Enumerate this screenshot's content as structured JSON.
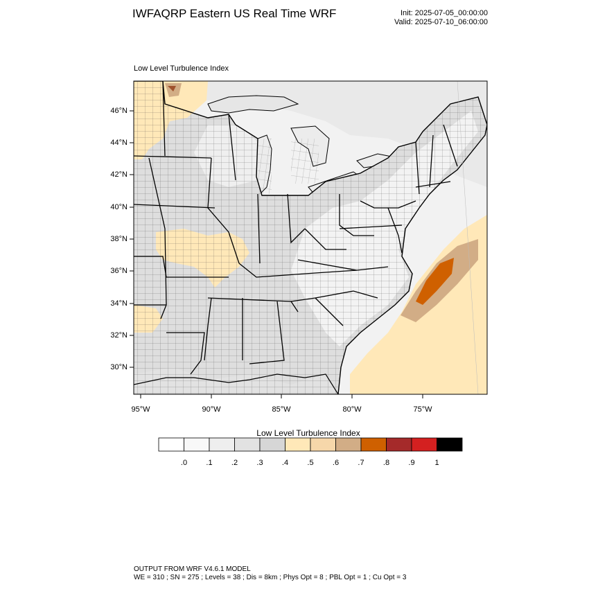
{
  "header": {
    "title": "IWFAQRP Eastern US Real Time WRF",
    "init": "Init: 2025-07-05_00:00:00",
    "valid": "Valid: 2025-07-10_06:00:00"
  },
  "map": {
    "label": "Low Level Turbulence Index",
    "lat_labels": [
      "46°N",
      "44°N",
      "42°N",
      "40°N",
      "38°N",
      "36°N",
      "34°N",
      "32°N",
      "30°N"
    ],
    "lon_labels": [
      "95°W",
      "90°W",
      "85°W",
      "80°W",
      "75°W"
    ]
  },
  "colorbar": {
    "title": "Low Level Turbulence Index",
    "ticks": [
      ".0",
      ".1",
      ".2",
      ".3",
      ".4",
      ".5",
      ".6",
      ".7",
      ".8",
      ".9",
      "1"
    ],
    "colors": [
      "#ffffff",
      "#f8f8f8",
      "#eeeeee",
      "#e2e2e2",
      "#d6d6d6",
      "#ffe8b8",
      "#f6d7aa",
      "#d2ad86",
      "#cf6000",
      "#a52a2a",
      "#d42020",
      "#000000"
    ]
  },
  "footer": {
    "line1": "OUTPUT FROM WRF V4.6.1 MODEL",
    "line2": "WE = 310 ; SN = 275 ; Levels = 38 ; Dis = 8km ; Phys Opt = 8 ; PBL Opt = 1 ; Cu Opt = 3"
  }
}
